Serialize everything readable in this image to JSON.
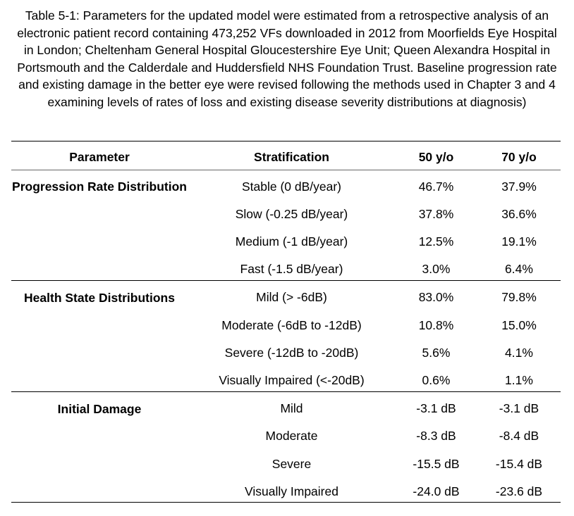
{
  "caption": "Table 5-1: Parameters for the updated model were estimated from a retrospective analysis of an electronic patient record containing 473,252 VFs downloaded in 2012 from Moorfields Eye Hospital in London; Cheltenham General Hospital Gloucestershire Eye Unit; Queen Alexandra Hospital in Portsmouth and the Calderdale and Huddersfield NHS Foundation Trust. Baseline progression rate and existing damage in the better eye were revised following the methods used in Chapter 3 and 4 examining levels of rates of loss and existing disease severity distributions at diagnosis)",
  "headers": {
    "parameter": "Parameter",
    "stratification": "Stratification",
    "col50": "50 y/o",
    "col70": "70 y/o"
  },
  "groups": [
    {
      "parameter": "Progression Rate Distribution",
      "rows": [
        {
          "stratification": "Stable (0 dB/year)",
          "v50": "46.7%",
          "v70": "37.9%"
        },
        {
          "stratification": "Slow (-0.25 dB/year)",
          "v50": "37.8%",
          "v70": "36.6%"
        },
        {
          "stratification": "Medium (-1 dB/year)",
          "v50": "12.5%",
          "v70": "19.1%"
        },
        {
          "stratification": "Fast (-1.5 dB/year)",
          "v50": "3.0%",
          "v70": "6.4%"
        }
      ]
    },
    {
      "parameter": "Health State Distributions",
      "rows": [
        {
          "stratification": "Mild (> -6dB)",
          "v50": "83.0%",
          "v70": "79.8%"
        },
        {
          "stratification": "Moderate (-6dB to -12dB)",
          "v50": "10.8%",
          "v70": "15.0%"
        },
        {
          "stratification": "Severe (-12dB to -20dB)",
          "v50": "5.6%",
          "v70": "4.1%"
        },
        {
          "stratification": "Visually Impaired (<-20dB)",
          "v50": "0.6%",
          "v70": "1.1%"
        }
      ]
    },
    {
      "parameter": "Initial Damage",
      "rows": [
        {
          "stratification": "Mild",
          "v50": "-3.1 dB",
          "v70": "-3.1 dB"
        },
        {
          "stratification": "Moderate",
          "v50": "-8.3 dB",
          "v70": "-8.4 dB"
        },
        {
          "stratification": "Severe",
          "v50": "-15.5 dB",
          "v70": "-15.4 dB"
        },
        {
          "stratification": "Visually Impaired",
          "v50": "-24.0 dB",
          "v70": "-23.6 dB"
        }
      ]
    }
  ]
}
